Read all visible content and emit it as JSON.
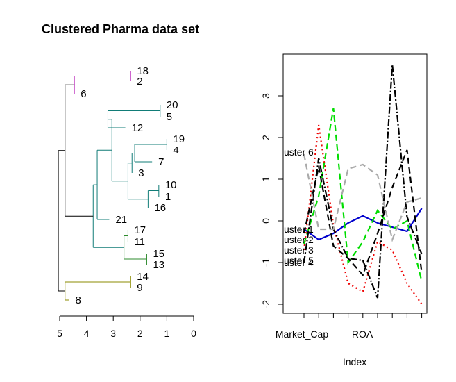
{
  "chart_data": [
    {
      "type": "dendrogram",
      "title": "Clustered Pharma data set",
      "axis_ticks": [
        "5",
        "4",
        "3",
        "2",
        "1",
        "0"
      ],
      "leaf_order": [
        "18",
        "2",
        "6",
        "20",
        "5",
        "12",
        "19",
        "4",
        "7",
        "3",
        "10",
        "1",
        "16",
        "21",
        "17",
        "11",
        "15",
        "13",
        "14",
        "9",
        "8"
      ],
      "branch_colors": {
        "cluster_a": "#c13bc1",
        "cluster_b": "#117c77",
        "cluster_c": "#2e8b2e",
        "cluster_d": "#8b8b00",
        "cluster_e": "#c13bc1",
        "root": "#000000"
      }
    },
    {
      "type": "line",
      "x_tick_labels": [
        "Market_Cap",
        "ROA"
      ],
      "xlabel": "Index",
      "ylim": [
        -2.2,
        4.0
      ],
      "y_ticks": [
        "-2",
        "-1",
        "0",
        "1",
        "2",
        "3"
      ],
      "n_points": 9,
      "series_labels": [
        "uster 6",
        "uster 1",
        "uster 2",
        "uster 3",
        "uster 5",
        "uster 4"
      ],
      "series": [
        {
          "name": "uster 1",
          "color": "#0000cc",
          "dash": "",
          "values": [
            -0.2,
            -0.45,
            -0.3,
            -0.05,
            0.12,
            -0.05,
            -0.15,
            -0.25,
            0.3
          ]
        },
        {
          "name": "uster 2",
          "color": "#ee0000",
          "dash": "2,4",
          "values": [
            -0.7,
            2.3,
            -0.1,
            -1.5,
            -1.7,
            -0.5,
            -0.7,
            -1.5,
            -2.0
          ]
        },
        {
          "name": "uster 3",
          "color": "#00dd00",
          "dash": "9,5",
          "values": [
            -0.55,
            0.6,
            2.7,
            -1.0,
            -0.5,
            0.25,
            -0.2,
            0.0,
            -1.45
          ]
        },
        {
          "name": "uster 4",
          "color": "#000000",
          "dash": "9,5",
          "values": [
            -0.3,
            1.3,
            -0.6,
            -0.9,
            -1.3,
            -0.3,
            0.8,
            1.7,
            -1.25
          ]
        },
        {
          "name": "uster 5",
          "color": "#000000",
          "dash": "10,3,2,3",
          "values": [
            -1.0,
            1.5,
            -0.2,
            -0.9,
            -0.95,
            -1.85,
            3.75,
            0.1,
            -0.8
          ]
        },
        {
          "name": "uster 6",
          "color": "#aaaaaa",
          "dash": "9,5",
          "values": [
            1.6,
            -0.2,
            -0.2,
            1.25,
            1.35,
            1.1,
            -0.45,
            0.45,
            0.55
          ]
        }
      ]
    }
  ]
}
